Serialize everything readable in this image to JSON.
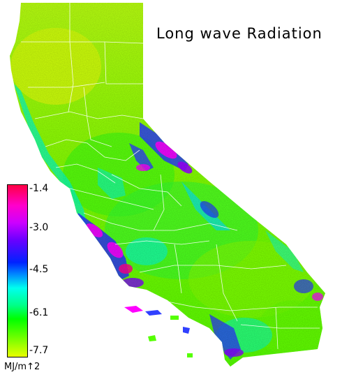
{
  "map": {
    "title": "Long wave Radiation",
    "colors": {
      "low": "#e8ff00",
      "mid_low": "#55ff00",
      "mid": "#00ff66",
      "cyan": "#00ffee",
      "blue": "#1a33ff",
      "purple": "#8800ff",
      "magenta": "#ff00ff",
      "high": "#ff0055",
      "county_lines": "#ffffff"
    }
  },
  "legend": {
    "ticks": [
      "-1.4",
      "-3.0",
      "-4.5",
      "-6.1",
      "-7.7"
    ],
    "unit": "MJ/m↑2"
  }
}
